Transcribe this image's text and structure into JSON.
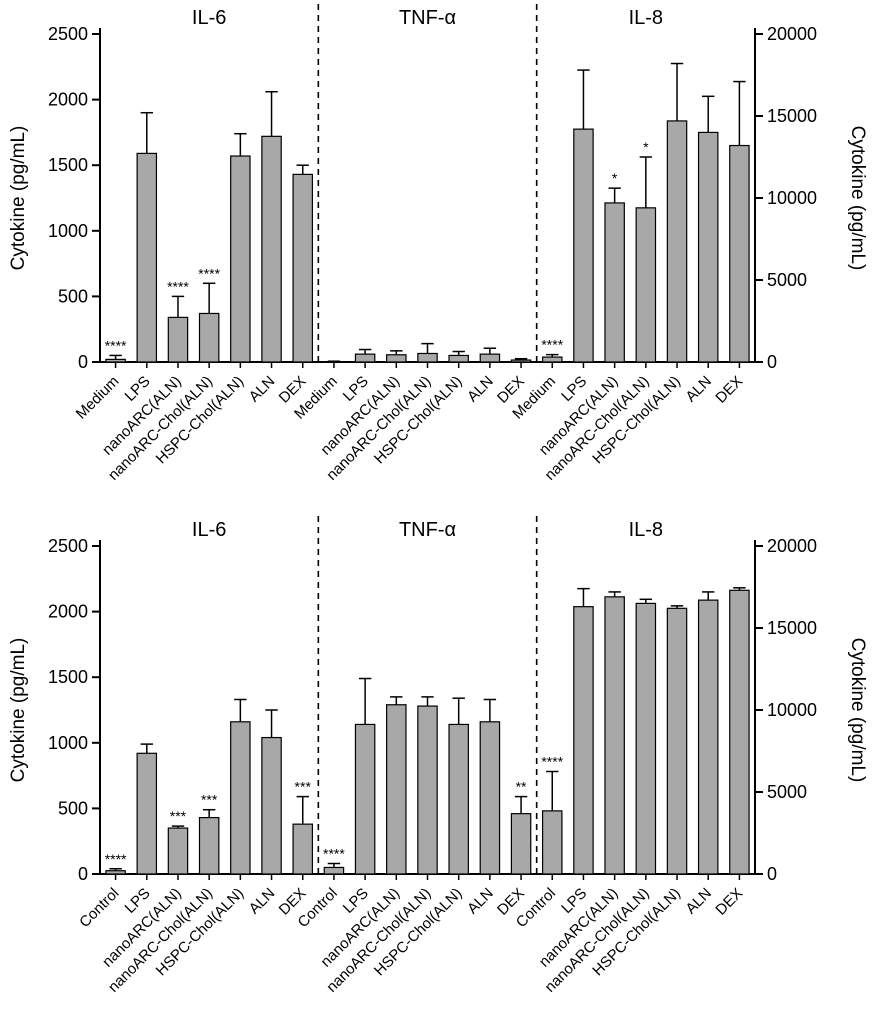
{
  "figure": {
    "left_axis_label": "Cytokine (pg/mL)",
    "right_axis_label": "Cytokine (pg/mL)"
  },
  "chart_data": [
    {
      "type": "bar",
      "panel": "top",
      "ylabel_left": "Cytokine (pg/mL)",
      "ylabel_right": "Cytokine (pg/mL)",
      "bar_color": "#a8a8a8",
      "grid": false,
      "left_axis": {
        "min": 0,
        "max": 2500,
        "ticks": [
          0,
          500,
          1000,
          1500,
          2000,
          2500
        ]
      },
      "right_axis": {
        "min": 0,
        "max": 20000,
        "ticks": [
          0,
          5000,
          10000,
          15000,
          20000
        ]
      },
      "categories": [
        "Medium",
        "LPS",
        "nanoARC(ALN)",
        "nanoARC-Chol(ALN)",
        "HSPC-Chol(ALN)",
        "ALN",
        "DEX"
      ],
      "sections": [
        {
          "title": "IL-6",
          "axis": "left",
          "values": [
            20,
            1590,
            340,
            370,
            1570,
            1720,
            1430
          ],
          "errors": [
            30,
            310,
            160,
            230,
            170,
            340,
            70
          ],
          "stars": [
            "****",
            "",
            "****",
            "****",
            "",
            "",
            ""
          ]
        },
        {
          "title": "TNF-α",
          "axis": "left",
          "values": [
            3,
            60,
            55,
            65,
            50,
            60,
            15
          ],
          "errors": [
            3,
            35,
            30,
            75,
            30,
            45,
            10
          ],
          "stars": [
            "",
            "",
            "",
            "",
            "",
            "",
            ""
          ]
        },
        {
          "title": "IL-8",
          "axis": "right",
          "values": [
            300,
            14200,
            9700,
            9400,
            14700,
            14000,
            13200
          ],
          "errors": [
            150,
            3600,
            900,
            3100,
            3500,
            2200,
            3900
          ],
          "stars": [
            "****",
            "",
            "*",
            "*",
            "",
            "",
            ""
          ]
        }
      ]
    },
    {
      "type": "bar",
      "panel": "bottom",
      "ylabel_left": "Cytokine (pg/mL)",
      "ylabel_right": "Cytokine (pg/mL)",
      "bar_color": "#a8a8a8",
      "grid": false,
      "left_axis": {
        "min": 0,
        "max": 2500,
        "ticks": [
          0,
          500,
          1000,
          1500,
          2000,
          2500
        ]
      },
      "right_axis": {
        "min": 0,
        "max": 20000,
        "ticks": [
          0,
          5000,
          10000,
          15000,
          20000
        ]
      },
      "categories": [
        "Control",
        "LPS",
        "nanoARC(ALN)",
        "nanoARC-Chol(ALN)",
        "HSPC-Chol(ALN)",
        "ALN",
        "DEX"
      ],
      "sections": [
        {
          "title": "IL-6",
          "axis": "left",
          "values": [
            25,
            920,
            350,
            430,
            1160,
            1040,
            380
          ],
          "errors": [
            15,
            70,
            15,
            60,
            170,
            210,
            210
          ],
          "stars": [
            "****",
            "",
            "***",
            "***",
            "",
            "",
            "***"
          ]
        },
        {
          "title": "TNF-α",
          "axis": "left",
          "values": [
            50,
            1140,
            1290,
            1280,
            1140,
            1160,
            460
          ],
          "errors": [
            30,
            350,
            60,
            70,
            200,
            170,
            130
          ],
          "stars": [
            "****",
            "",
            "",
            "",
            "",
            "",
            "**"
          ]
        },
        {
          "title": "IL-8",
          "axis": "right",
          "values": [
            3850,
            16300,
            16900,
            16500,
            16200,
            16700,
            17300
          ],
          "errors": [
            2400,
            1100,
            300,
            250,
            150,
            500,
            150
          ],
          "stars": [
            "****",
            "",
            "",
            "",
            "",
            "",
            ""
          ]
        }
      ]
    }
  ]
}
